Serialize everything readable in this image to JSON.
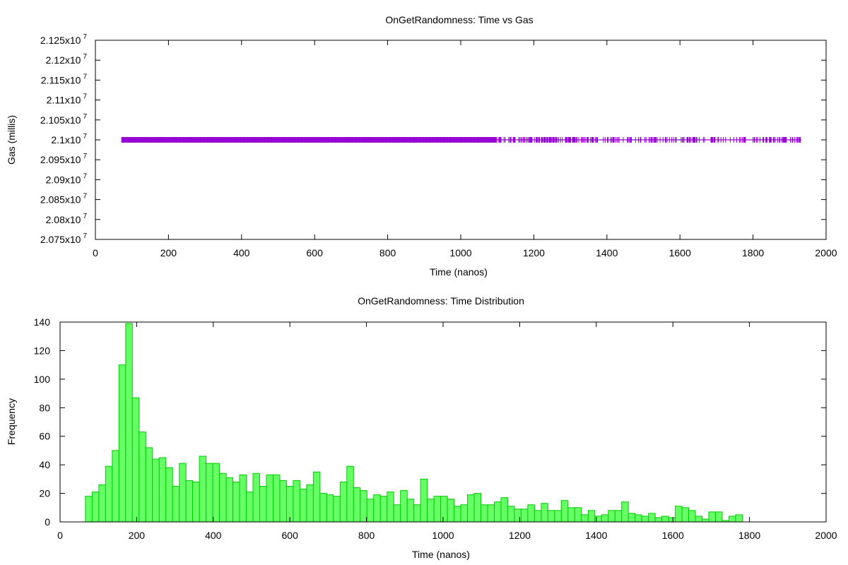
{
  "chart_data": [
    {
      "type": "scatter",
      "title": "OnGetRandomness: Time vs Gas",
      "xlabel": "Time (nanos)",
      "ylabel": "Gas (millis)",
      "xlim": [
        0,
        2000
      ],
      "ylim": [
        20750000,
        21250000
      ],
      "x_ticks": [
        "0",
        "200",
        "400",
        "600",
        "800",
        "1000",
        "1200",
        "1400",
        "1600",
        "1800",
        "2000"
      ],
      "y_ticks": [
        {
          "mantissa": "2.075x10",
          "exp": "7"
        },
        {
          "mantissa": "2.08x10",
          "exp": "7"
        },
        {
          "mantissa": "2.085x10",
          "exp": "7"
        },
        {
          "mantissa": "2.09x10",
          "exp": "7"
        },
        {
          "mantissa": "2.095x10",
          "exp": "7"
        },
        {
          "mantissa": "2.1x10",
          "exp": "7"
        },
        {
          "mantissa": "2.105x10",
          "exp": "7"
        },
        {
          "mantissa": "2.11x10",
          "exp": "7"
        },
        {
          "mantissa": "2.115x10",
          "exp": "7"
        },
        {
          "mantissa": "2.12x10",
          "exp": "7"
        },
        {
          "mantissa": "2.125x10",
          "exp": "7"
        }
      ],
      "color": "#9400d3",
      "series": [
        {
          "x_range": [
            72,
            1932
          ],
          "y": 21000000
        }
      ]
    },
    {
      "type": "bar",
      "title": "OnGetRandomness: Time Distribution",
      "xlabel": "Time (nanos)",
      "ylabel": "Frequency",
      "xlim": [
        0,
        2000
      ],
      "ylim": [
        0,
        140
      ],
      "x_ticks": [
        "0",
        "200",
        "400",
        "600",
        "800",
        "1000",
        "1200",
        "1400",
        "1600",
        "1800",
        "2000"
      ],
      "y_ticks": [
        "0",
        "20",
        "40",
        "60",
        "80",
        "100",
        "120",
        "140"
      ],
      "bin_start": 75,
      "bin_width": 17.5,
      "fill_color": "#66ff66",
      "edge_color": "#00cc00",
      "values": [
        18,
        21,
        26,
        39,
        50,
        110,
        139,
        87,
        63,
        52,
        44,
        45,
        38,
        25,
        41,
        29,
        28,
        46,
        41,
        41,
        34,
        31,
        28,
        33,
        21,
        34,
        25,
        33,
        33,
        29,
        25,
        29,
        23,
        26,
        35,
        20,
        19,
        18,
        28,
        39,
        24,
        22,
        16,
        19,
        18,
        21,
        12,
        22,
        16,
        12,
        30,
        16,
        18,
        18,
        16,
        11,
        12,
        19,
        20,
        12,
        12,
        14,
        17,
        11,
        9,
        9,
        12,
        8,
        13,
        8,
        8,
        15,
        10,
        10,
        5,
        8,
        4,
        5,
        8,
        8,
        14,
        6,
        5,
        4,
        6,
        3,
        4,
        3,
        11,
        10,
        8,
        4,
        2,
        7,
        7,
        1,
        4,
        5
      ]
    }
  ]
}
